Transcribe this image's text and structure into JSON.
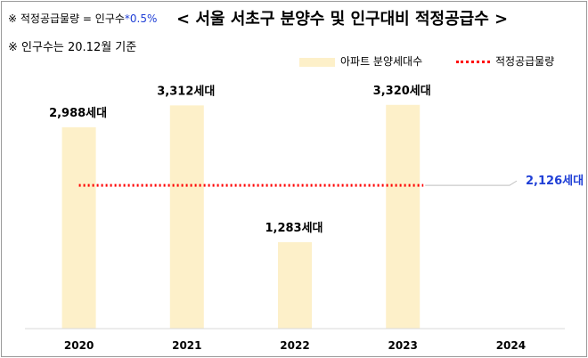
{
  "header": {
    "note_formula_prefix": "※ 적정공급물량 = 인구수",
    "note_formula_rate": "*0.5%",
    "note_population": "※ 인구수는 20.12월 기준",
    "title": "< 서울 서초구 분양수 및 인구대비 적정공급수 >"
  },
  "legend": {
    "bar_label": "아파트 분양세대수",
    "line_label": "적정공급물량"
  },
  "chart_data": {
    "type": "bar",
    "title": "< 서울 서초구 분양수 및 인구대비 적정공급수 >",
    "categories": [
      "2020",
      "2021",
      "2022",
      "2023",
      "2024"
    ],
    "series": [
      {
        "name": "아파트 분양세대수",
        "type": "bar",
        "values": [
          2988,
          3312,
          1283,
          3320,
          null
        ],
        "labels": [
          "2,988세대",
          "3,312세대",
          "1,283세대",
          "3,320세대",
          ""
        ]
      },
      {
        "name": "적정공급물량",
        "type": "line",
        "values": [
          2126,
          2126,
          2126,
          2126,
          2126
        ],
        "label": "2,126세대"
      }
    ],
    "ylim": [
      0,
      3700
    ],
    "grid": false,
    "legend_position": "top-right",
    "colors": {
      "bar": "#fdf0c9",
      "line": "#ff0000",
      "line_label": "#1f3fd6",
      "plot_bg": "#ffffff"
    }
  }
}
